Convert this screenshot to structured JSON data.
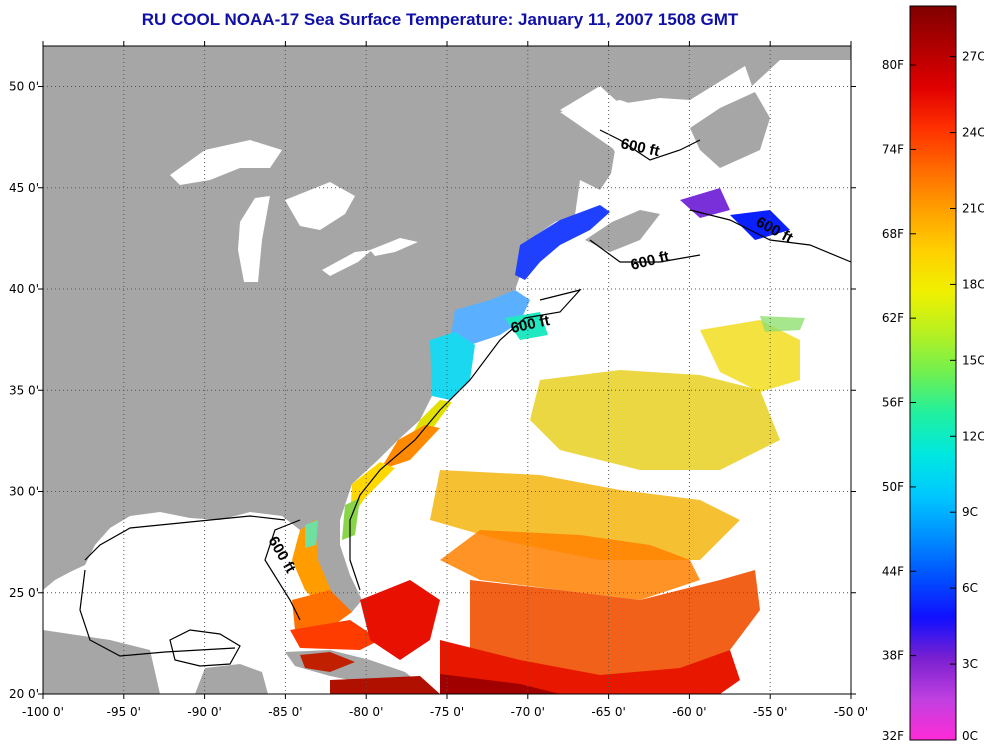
{
  "title": "RU COOL  NOAA-17  Sea Surface Temperature:  January 11, 2007 1508 GMT",
  "map": {
    "lon_range": [
      -100,
      -50
    ],
    "lat_range": [
      20,
      52
    ],
    "lon_ticks": [
      "-100 0'",
      "-95 0'",
      "-90 0'",
      "-85 0'",
      "-80 0'",
      "-75 0'",
      "-70 0'",
      "-65 0'",
      "-60 0'",
      "-55 0'",
      "-50 0'"
    ],
    "lat_ticks": [
      "20 0'",
      "25 0'",
      "30 0'",
      "35 0'",
      "40 0'",
      "45 0'",
      "50 0'"
    ],
    "land_color": "#a6a6a6",
    "ocean_color": "#ffffff",
    "grid": "dotted",
    "contour_labels": [
      "600 ft",
      "600 ft",
      "600 ft",
      "600 ft",
      "600 ft"
    ]
  },
  "colorbar": {
    "range_c": [
      0,
      29
    ],
    "fahrenheit_labels": [
      "32F",
      "38F",
      "44F",
      "50F",
      "56F",
      "62F",
      "68F",
      "74F",
      "80F"
    ],
    "celsius_labels": [
      "0C",
      "3C",
      "6C",
      "9C",
      "12C",
      "15C",
      "18C",
      "21C",
      "24C",
      "27C"
    ],
    "colors": [
      "#ff2bd6",
      "#c040e0",
      "#7a20d0",
      "#1010ff",
      "#0050ff",
      "#0090ff",
      "#00c8ff",
      "#00e8e0",
      "#20f0a0",
      "#70f050",
      "#b8f020",
      "#f0f000",
      "#ffd000",
      "#ffa000",
      "#ff6a00",
      "#ff3000",
      "#e00000",
      "#b00000",
      "#800000"
    ]
  }
}
